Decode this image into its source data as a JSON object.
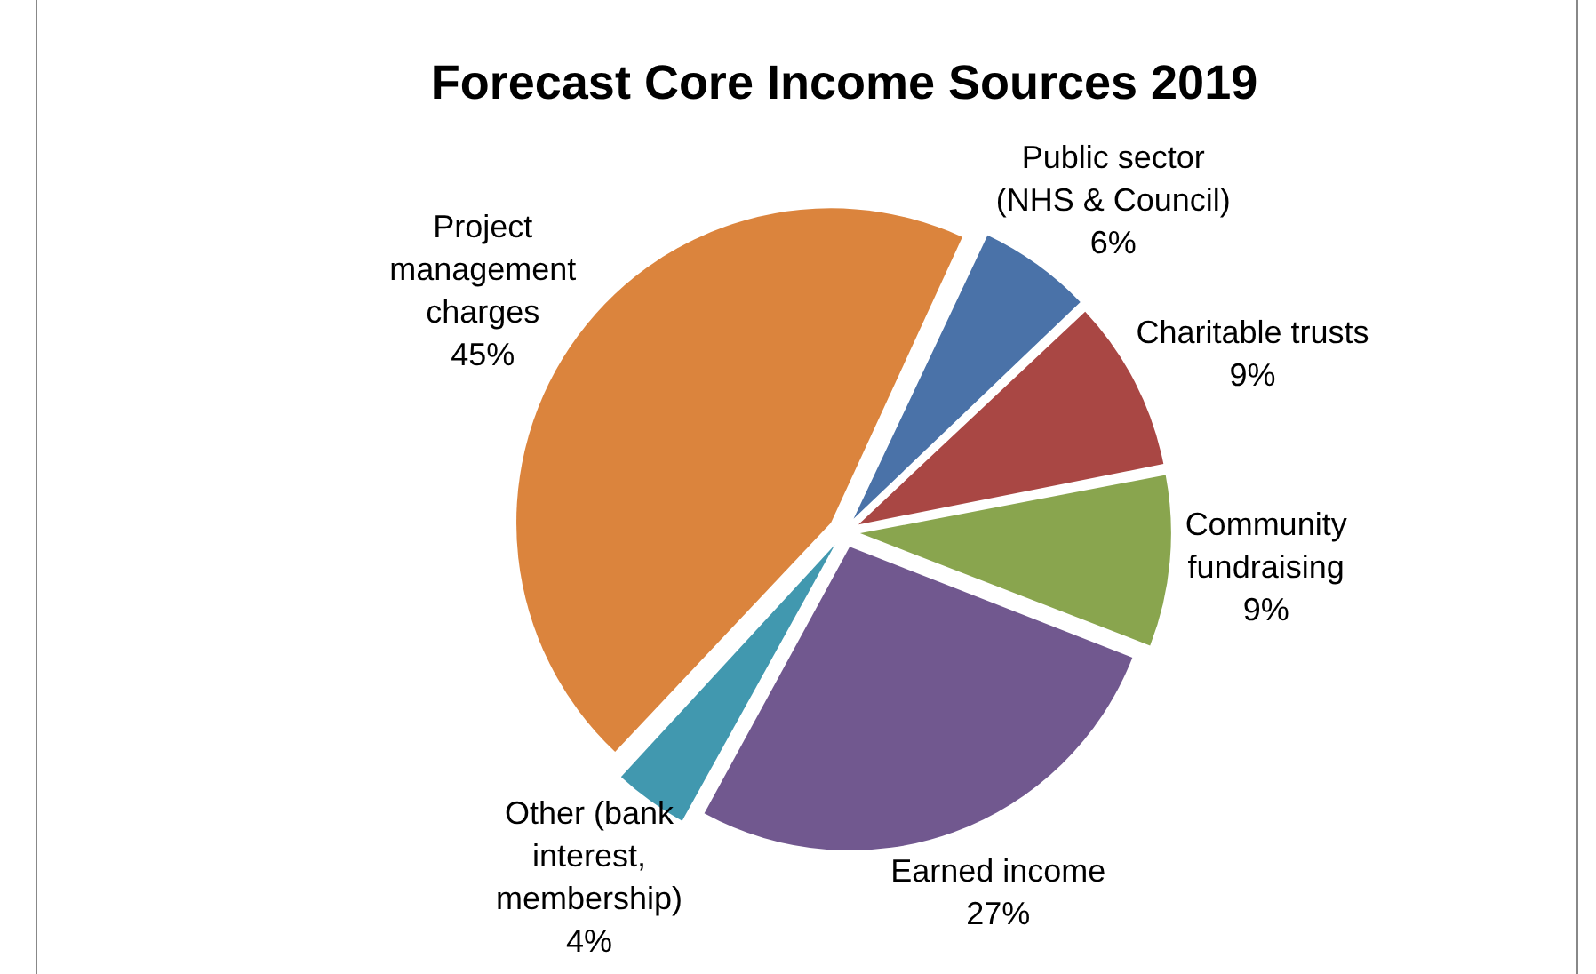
{
  "chart_data": {
    "type": "pie",
    "title": "Forecast Core Income Sources 2019",
    "categories": [
      "Public sector (NHS & Council)",
      "Charitable trusts",
      "Community fundraising",
      "Earned income",
      "Other (bank interest, membership)",
      "Project management charges"
    ],
    "values": [
      6,
      9,
      9,
      27,
      4,
      45
    ],
    "value_labels": [
      "6%",
      "9%",
      "9%",
      "27%",
      "4%",
      "45%"
    ],
    "colors": [
      "#4a72a8",
      "#a94744",
      "#89a54e",
      "#71588f",
      "#4198af",
      "#db843d"
    ],
    "legend": false
  }
}
